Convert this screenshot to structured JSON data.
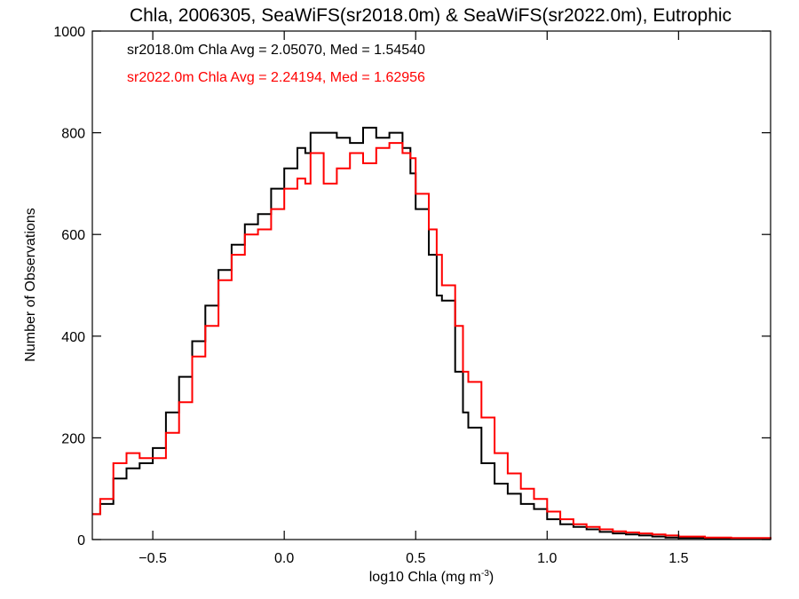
{
  "chart_data": {
    "type": "line",
    "title": "Chla, 2006305, SeaWiFS(sr2018.0m) & SeaWiFS(sr2022.0m), Eutrophic",
    "xlabel": "log10 Chla (mg m",
    "xlabel_sup": "-3",
    "xlabel_close": ")",
    "ylabel": "Number of Observations",
    "xlim": [
      -0.73,
      1.85
    ],
    "ylim": [
      0,
      1000
    ],
    "x_ticks": [
      {
        "value": -0.5,
        "label": "−0.5"
      },
      {
        "value": 0.0,
        "label": "0.0"
      },
      {
        "value": 0.5,
        "label": "0.5"
      },
      {
        "value": 1.0,
        "label": "1.0"
      },
      {
        "value": 1.5,
        "label": "1.5"
      }
    ],
    "y_ticks": [
      {
        "value": 0,
        "label": "0"
      },
      {
        "value": 200,
        "label": "200"
      },
      {
        "value": 400,
        "label": "400"
      },
      {
        "value": 600,
        "label": "600"
      },
      {
        "value": 800,
        "label": "800"
      },
      {
        "value": 1000,
        "label": "1000"
      }
    ],
    "grid": false,
    "annotations": [
      {
        "text": "sr2018.0m Chla Avg = 2.05070, Med = 1.54540",
        "color": "#000000"
      },
      {
        "text": "sr2022.0m Chla Avg = 2.24194, Med = 1.62956",
        "color": "#ff0000"
      }
    ],
    "series": [
      {
        "color": "#000000",
        "x": [
          -0.73,
          -0.7,
          -0.65,
          -0.6,
          -0.55,
          -0.5,
          -0.45,
          -0.4,
          -0.35,
          -0.3,
          -0.25,
          -0.2,
          -0.15,
          -0.1,
          -0.05,
          0.0,
          0.05,
          0.08,
          0.1,
          0.15,
          0.2,
          0.25,
          0.3,
          0.35,
          0.4,
          0.45,
          0.48,
          0.5,
          0.55,
          0.58,
          0.6,
          0.65,
          0.68,
          0.7,
          0.75,
          0.8,
          0.85,
          0.9,
          0.95,
          1.0,
          1.05,
          1.1,
          1.15,
          1.2,
          1.25,
          1.3,
          1.35,
          1.4,
          1.45,
          1.5,
          1.6,
          1.7,
          1.85
        ],
        "values": [
          50,
          70,
          120,
          140,
          150,
          180,
          250,
          320,
          390,
          460,
          530,
          580,
          620,
          640,
          690,
          730,
          770,
          760,
          800,
          800,
          790,
          780,
          810,
          790,
          800,
          770,
          720,
          650,
          560,
          480,
          470,
          330,
          250,
          220,
          150,
          110,
          90,
          70,
          60,
          40,
          30,
          25,
          20,
          15,
          12,
          10,
          8,
          6,
          4,
          3,
          2,
          1,
          0
        ]
      },
      {
        "color": "#ff0000",
        "x": [
          -0.73,
          -0.7,
          -0.65,
          -0.6,
          -0.55,
          -0.5,
          -0.45,
          -0.4,
          -0.35,
          -0.3,
          -0.25,
          -0.2,
          -0.15,
          -0.1,
          -0.05,
          0.0,
          0.05,
          0.08,
          0.1,
          0.15,
          0.2,
          0.25,
          0.3,
          0.35,
          0.4,
          0.45,
          0.48,
          0.5,
          0.55,
          0.58,
          0.6,
          0.65,
          0.68,
          0.7,
          0.75,
          0.8,
          0.85,
          0.9,
          0.95,
          1.0,
          1.05,
          1.1,
          1.15,
          1.2,
          1.25,
          1.3,
          1.35,
          1.4,
          1.45,
          1.5,
          1.6,
          1.7,
          1.85
        ],
        "values": [
          50,
          80,
          150,
          170,
          160,
          160,
          210,
          270,
          360,
          420,
          510,
          560,
          600,
          610,
          650,
          690,
          710,
          700,
          760,
          700,
          730,
          760,
          740,
          770,
          780,
          760,
          750,
          680,
          610,
          560,
          500,
          420,
          330,
          310,
          240,
          170,
          130,
          100,
          80,
          55,
          40,
          30,
          25,
          20,
          16,
          14,
          12,
          10,
          8,
          6,
          4,
          3,
          1
        ]
      }
    ]
  }
}
